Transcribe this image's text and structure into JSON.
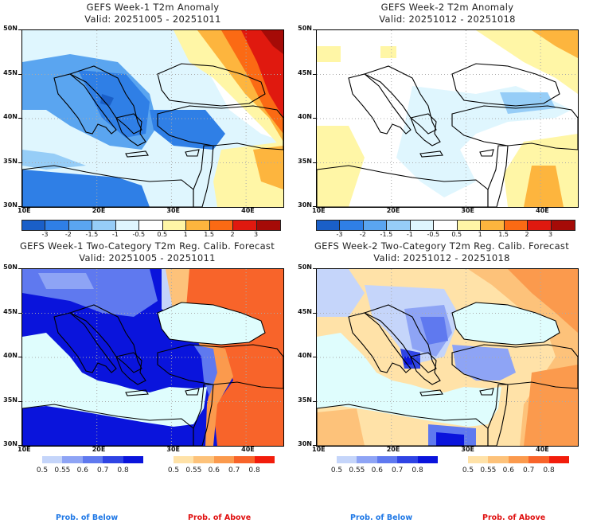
{
  "panels": [
    {
      "id": "week1-anomaly",
      "title": "GEFS Week-1 T2m Anomaly",
      "valid": "Valid: 20251005 - 20251011"
    },
    {
      "id": "week2-anomaly",
      "title": "GEFS Week-2 T2m Anomaly",
      "valid": "Valid: 20251012 - 20251018"
    },
    {
      "id": "week1-prob",
      "title": "GEFS Week-1 Two-Category T2m Reg. Calib. Forecast",
      "valid": "Valid: 20251005 - 20251011"
    },
    {
      "id": "week2-prob",
      "title": "GEFS Week-2 Two-Category T2m Reg. Calib. Forecast",
      "valid": "Valid: 20251012 - 20251018"
    }
  ],
  "axes": {
    "lat_labels": [
      "50N",
      "45N",
      "40N",
      "35N",
      "30N"
    ],
    "lon_labels": [
      "10E",
      "20E",
      "30E",
      "40E"
    ]
  },
  "anomaly_colorbar": {
    "colors": [
      "#1a5fc8",
      "#2f7fe6",
      "#5aa5f0",
      "#96cdf7",
      "#dff6fe",
      "#ffffff",
      "#fff6a6",
      "#fdb53e",
      "#fb6a14",
      "#e0190f",
      "#a50b07"
    ],
    "labels": [
      "-3",
      "-2",
      "-1.5",
      "-1",
      "-0.5",
      "0.5",
      "1",
      "1.5",
      "2",
      "3"
    ]
  },
  "prob_below_colorbar": {
    "colors": [
      "#c5d5fa",
      "#8ea4f5",
      "#5f79ef",
      "#2f44e4",
      "#0a14dc"
    ],
    "labels": [
      "0.5",
      "0.55",
      "0.6",
      "0.7",
      "0.8"
    ],
    "caption": "Prob. of Below",
    "caption_color": "#1f78e6"
  },
  "prob_above_colorbar": {
    "colors": [
      "#ffe2a8",
      "#fdc27a",
      "#fb9a4d",
      "#f8642a",
      "#f21d0c"
    ],
    "labels": [
      "0.5",
      "0.55",
      "0.6",
      "0.7",
      "0.8"
    ],
    "caption": "Prob. of Above",
    "caption_color": "#e01010"
  },
  "colors": {
    "sea": "#dffdfd",
    "land_outline": "#000000"
  }
}
